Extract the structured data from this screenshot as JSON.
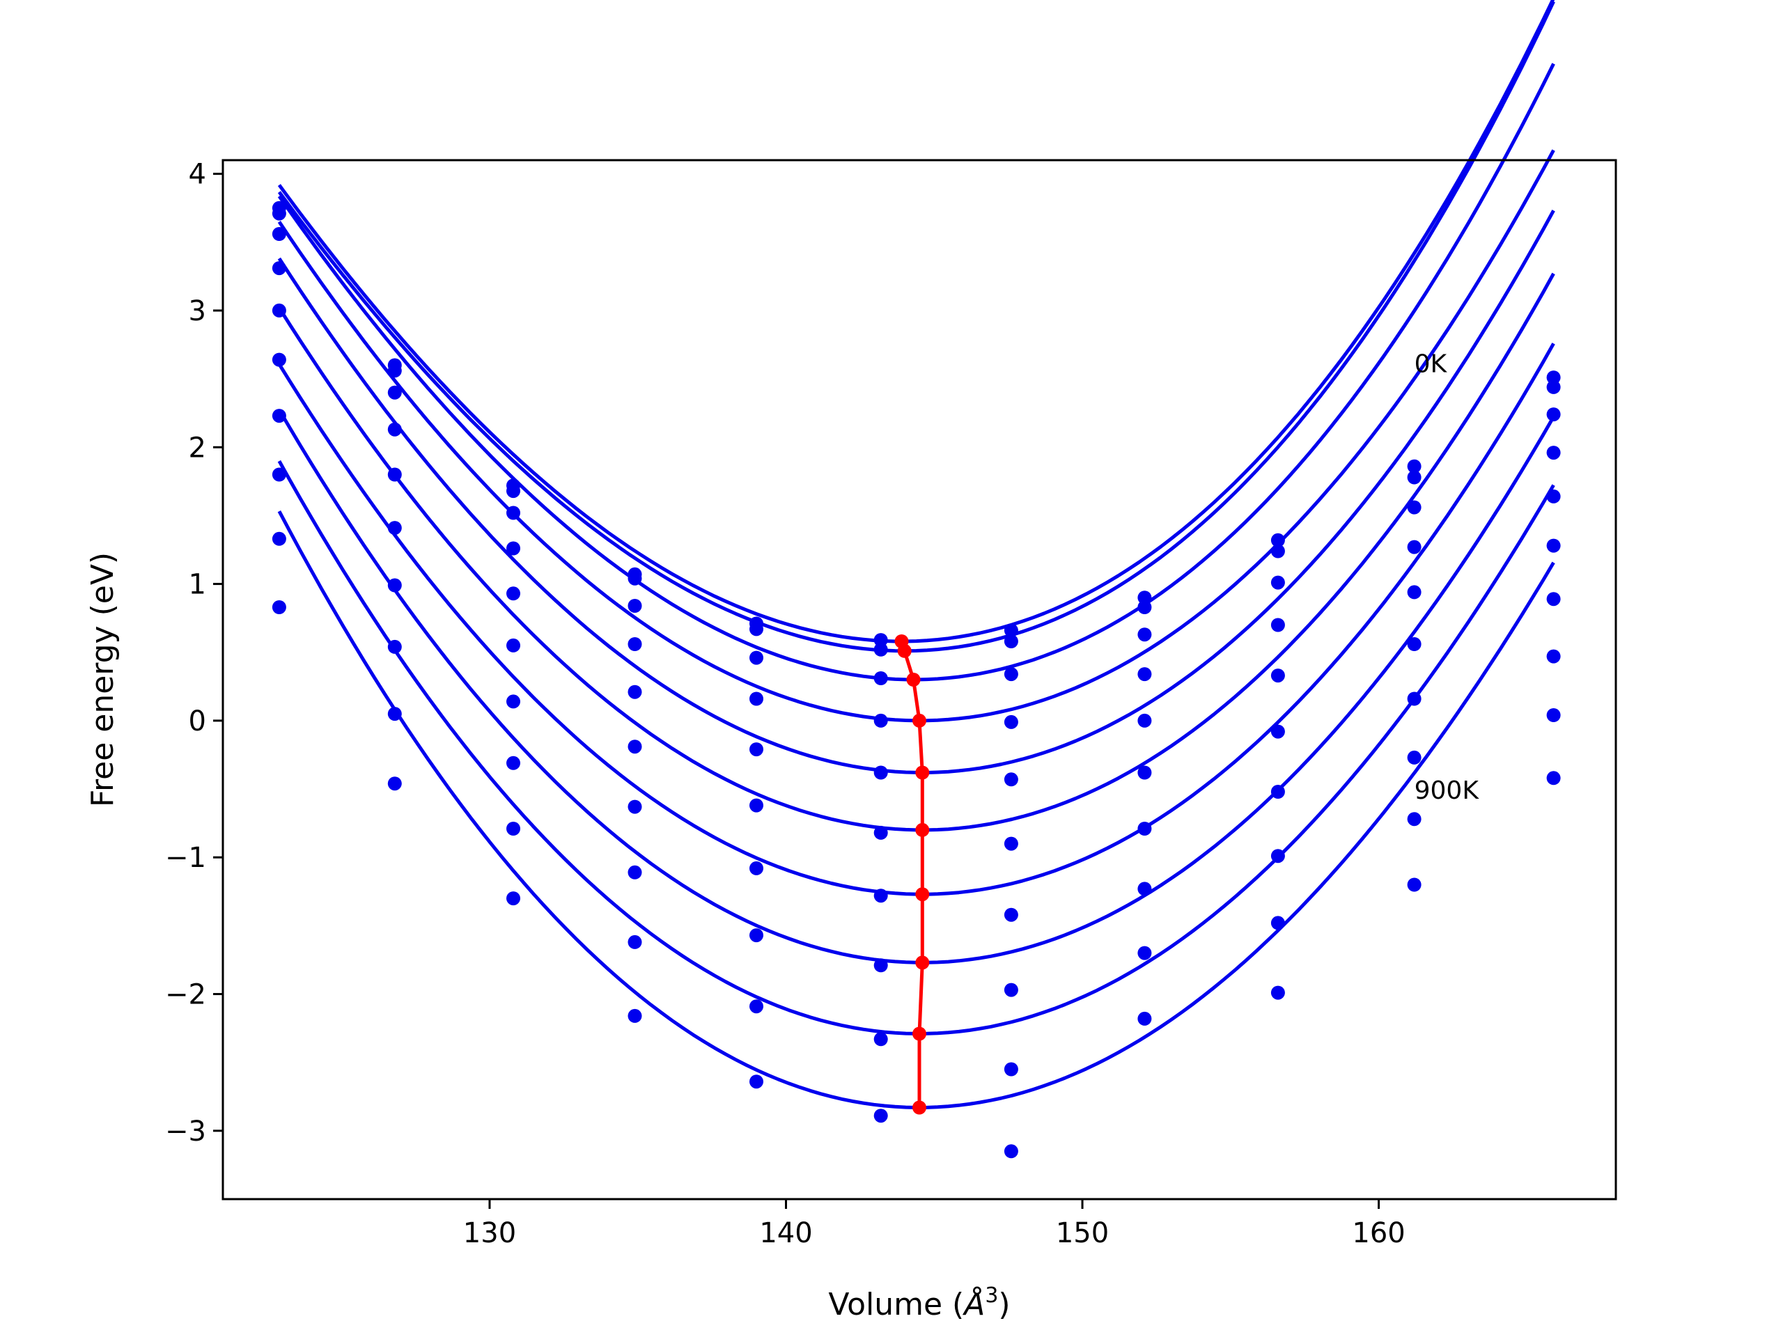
{
  "chart_data": {
    "type": "line",
    "xlabel": "Volume (",
    "xlabel_symbol": "Å",
    "xlabel_exponent": "3",
    "xlabel_close": ")",
    "ylabel": "Free energy (eV)",
    "xlim": [
      121,
      168
    ],
    "ylim": [
      -3.5,
      4.1
    ],
    "xticks": [
      130,
      140,
      150,
      160
    ],
    "yticks": [
      -3,
      -2,
      -1,
      0,
      1,
      2,
      3,
      4
    ],
    "grid": false,
    "annotations": [
      {
        "text": "0K",
        "x": 161.2,
        "y": 2.55
      },
      {
        "text": "900K",
        "x": 161.2,
        "y": -0.57
      }
    ],
    "series_color": "#0000ee",
    "min_line_color": "#ff0000",
    "volumes": [
      122.9,
      126.8,
      130.8,
      134.9,
      139.0,
      143.2,
      147.6,
      152.1,
      156.6,
      161.2,
      165.9
    ],
    "series": [
      {
        "points": [
          3.75,
          2.6,
          1.72,
          1.07,
          0.71,
          0.59,
          0.66,
          0.9,
          1.32,
          1.86,
          2.51
        ]
      },
      {
        "points": [
          3.71,
          2.56,
          1.68,
          1.04,
          0.67,
          0.52,
          0.58,
          0.83,
          1.24,
          1.78,
          2.44
        ]
      },
      {
        "points": [
          3.56,
          2.4,
          1.52,
          0.84,
          0.46,
          0.31,
          0.34,
          0.63,
          1.01,
          1.56,
          2.24
        ]
      },
      {
        "points": [
          3.31,
          2.13,
          1.26,
          0.56,
          0.16,
          0.0,
          -0.01,
          0.34,
          0.7,
          1.27,
          1.96
        ]
      },
      {
        "points": [
          3.0,
          1.8,
          0.93,
          0.21,
          -0.21,
          -0.38,
          -0.43,
          0.0,
          0.33,
          0.94,
          1.64
        ]
      },
      {
        "points": [
          2.64,
          1.41,
          0.55,
          -0.19,
          -0.62,
          -0.82,
          -0.9,
          -0.38,
          -0.08,
          0.56,
          1.28
        ]
      },
      {
        "points": [
          2.23,
          0.99,
          0.14,
          -0.63,
          -1.08,
          -1.28,
          -1.42,
          -0.79,
          -0.52,
          0.16,
          0.89
        ]
      },
      {
        "points": [
          1.8,
          0.54,
          -0.31,
          -1.11,
          -1.57,
          -1.79,
          -1.97,
          -1.23,
          -0.99,
          -0.27,
          0.47
        ]
      },
      {
        "points": [
          1.33,
          0.05,
          -0.79,
          -1.62,
          -2.09,
          -2.33,
          -2.55,
          -1.7,
          -1.48,
          -0.72,
          0.04
        ]
      },
      {
        "points": [
          0.83,
          -0.46,
          -1.3,
          -2.16,
          -2.64,
          -2.89,
          -3.15,
          -2.18,
          -1.99,
          -1.2,
          -0.42
        ]
      }
    ],
    "fit_curves": [
      {
        "v0": 143.9,
        "e0": 0.58,
        "a": 0.00862,
        "b": 5e-05
      },
      {
        "v0": 144.0,
        "e0": 0.51,
        "a": 0.0087,
        "b": 5.5e-05
      },
      {
        "v0": 144.3,
        "e0": 0.3,
        "a": 0.008685,
        "b": 4.5e-05
      },
      {
        "v0": 144.5,
        "e0": 0.0,
        "a": 0.00847,
        "b": 3e-05
      },
      {
        "v0": 144.6,
        "e0": -0.38,
        "a": 0.00853,
        "b": 2.5e-05
      },
      {
        "v0": 144.6,
        "e0": -0.8,
        "a": 0.008545,
        "b": 2e-05
      },
      {
        "v0": 144.6,
        "e0": -1.27,
        "a": 0.00856,
        "b": 1.5e-05
      },
      {
        "v0": 144.6,
        "e0": -1.77,
        "a": 0.008695,
        "b": 5e-06
      },
      {
        "v0": 144.5,
        "e0": -2.29,
        "a": 0.00887,
        "b": -5e-06
      },
      {
        "v0": 144.5,
        "e0": -2.83,
        "a": 0.009025,
        "b": -1.5e-05
      }
    ],
    "minima": {
      "x": [
        143.9,
        144.0,
        144.3,
        144.5,
        144.6,
        144.6,
        144.6,
        144.6,
        144.5,
        144.5
      ],
      "y": [
        0.58,
        0.51,
        0.3,
        0.0,
        -0.38,
        -0.8,
        -1.27,
        -1.77,
        -2.29,
        -2.83
      ]
    }
  }
}
